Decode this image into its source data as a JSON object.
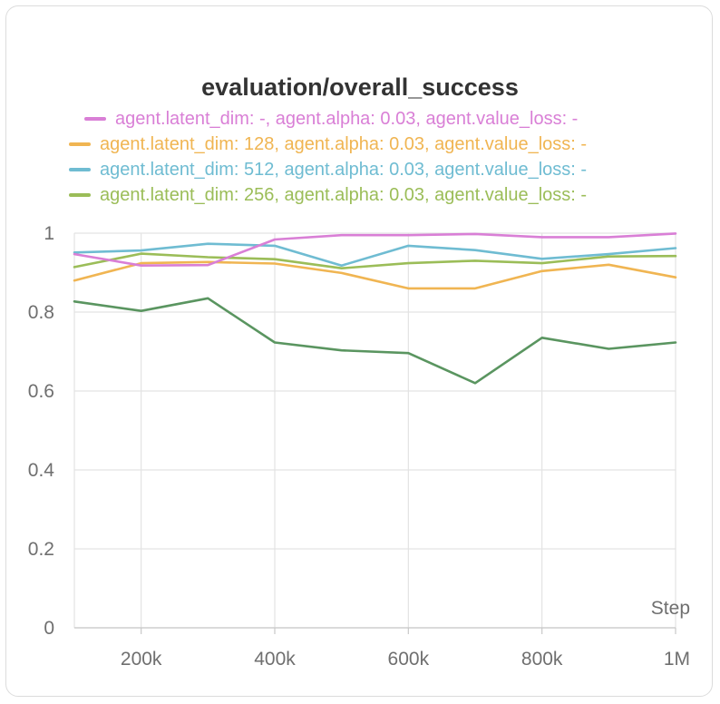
{
  "chart_data": {
    "type": "line",
    "title": "evaluation/overall_success",
    "xlabel": "Step",
    "ylabel": "",
    "xlim": [
      100000,
      1000000
    ],
    "ylim": [
      0,
      1
    ],
    "x_ticks": [
      {
        "value": 200000,
        "label": "200k"
      },
      {
        "value": 400000,
        "label": "400k"
      },
      {
        "value": 600000,
        "label": "600k"
      },
      {
        "value": 800000,
        "label": "800k"
      },
      {
        "value": 1000000,
        "label": "1M"
      }
    ],
    "y_ticks": [
      {
        "value": 0,
        "label": "0"
      },
      {
        "value": 0.2,
        "label": "0.2"
      },
      {
        "value": 0.4,
        "label": "0.4"
      },
      {
        "value": 0.6,
        "label": "0.6"
      },
      {
        "value": 0.8,
        "label": "0.8"
      },
      {
        "value": 1,
        "label": "1"
      }
    ],
    "grid": true,
    "legend_position": "top",
    "x": [
      100000,
      200000,
      300000,
      400000,
      500000,
      600000,
      700000,
      800000,
      900000,
      1000000
    ],
    "series": [
      {
        "name": "agent.latent_dim: -, agent.alpha: 0.03, agent.value_loss: -",
        "color": "#d97fd6",
        "values": [
          0.947,
          0.918,
          0.919,
          0.984,
          0.995,
          0.995,
          0.998,
          0.99,
          0.99,
          0.999
        ]
      },
      {
        "name": "agent.latent_dim: 128, agent.alpha: 0.03, agent.value_loss: -",
        "color": "#f0b552",
        "values": [
          0.88,
          0.924,
          0.927,
          0.923,
          0.899,
          0.86,
          0.86,
          0.904,
          0.92,
          0.888
        ]
      },
      {
        "name": "agent.latent_dim: 512, agent.alpha: 0.03, agent.value_loss: -",
        "color": "#6fbcd2",
        "values": [
          0.951,
          0.956,
          0.973,
          0.968,
          0.918,
          0.968,
          0.957,
          0.935,
          0.947,
          0.962
        ]
      },
      {
        "name": "agent.latent_dim: 256, agent.alpha: 0.03, agent.value_loss: -",
        "color": "#9bbd58",
        "values": [
          0.914,
          0.948,
          0.939,
          0.934,
          0.911,
          0.924,
          0.93,
          0.924,
          0.941,
          0.942
        ]
      },
      {
        "name": "",
        "color": "#5a9560",
        "values": [
          0.827,
          0.803,
          0.835,
          0.723,
          0.703,
          0.696,
          0.62,
          0.735,
          0.707,
          0.723
        ]
      }
    ]
  }
}
